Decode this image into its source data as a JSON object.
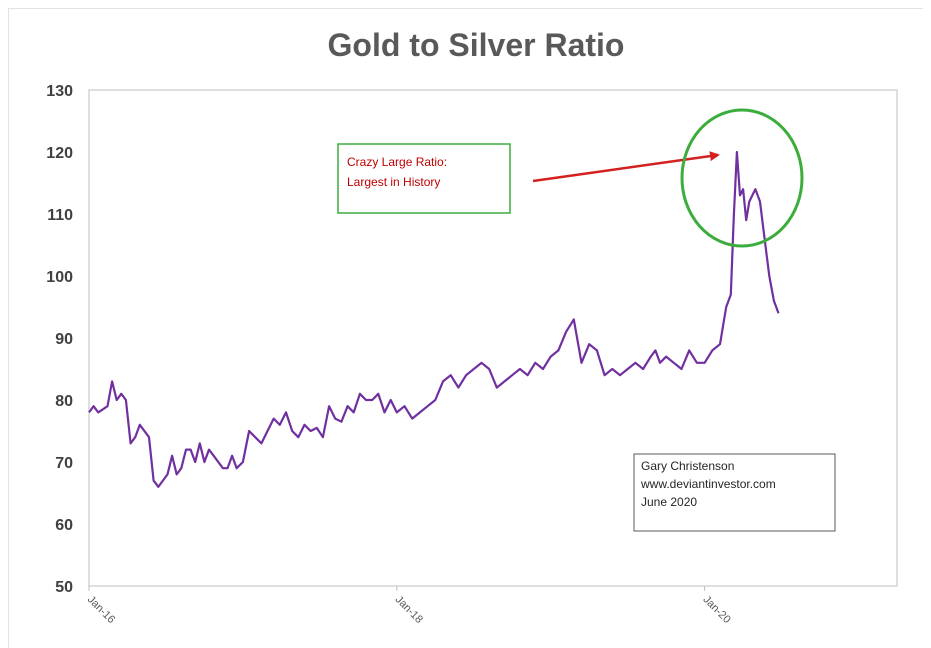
{
  "chart_data": {
    "type": "line",
    "title": "Gold to Silver Ratio",
    "xlabel": "",
    "ylabel": "",
    "ylim": [
      50,
      130
    ],
    "y_ticks": [
      50,
      60,
      70,
      80,
      90,
      100,
      110,
      120,
      130
    ],
    "x_tick_labels": [
      "Jan-16",
      "Jan-18",
      "Jan-20"
    ],
    "x_tick_years": [
      2016,
      2018,
      2020
    ],
    "xlim": [
      2016,
      2021.25
    ],
    "grid": false,
    "legend": "none",
    "series": [
      {
        "color": "#7030a0",
        "x": [
          2016.0,
          2016.03,
          2016.06,
          2016.09,
          2016.12,
          2016.15,
          2016.18,
          2016.21,
          2016.24,
          2016.27,
          2016.3,
          2016.33,
          2016.36,
          2016.39,
          2016.42,
          2016.45,
          2016.48,
          2016.51,
          2016.54,
          2016.57,
          2016.6,
          2016.63,
          2016.66,
          2016.69,
          2016.72,
          2016.75,
          2016.78,
          2016.81,
          2016.84,
          2016.87,
          2016.9,
          2016.93,
          2016.96,
          2017.0,
          2017.04,
          2017.08,
          2017.12,
          2017.16,
          2017.2,
          2017.24,
          2017.28,
          2017.32,
          2017.36,
          2017.4,
          2017.44,
          2017.48,
          2017.52,
          2017.56,
          2017.6,
          2017.64,
          2017.68,
          2017.72,
          2017.76,
          2017.8,
          2017.84,
          2017.88,
          2017.92,
          2017.96,
          2018.0,
          2018.05,
          2018.1,
          2018.15,
          2018.2,
          2018.25,
          2018.3,
          2018.35,
          2018.4,
          2018.45,
          2018.5,
          2018.55,
          2018.6,
          2018.65,
          2018.7,
          2018.75,
          2018.8,
          2018.85,
          2018.9,
          2018.95,
          2019.0,
          2019.05,
          2019.1,
          2019.15,
          2019.2,
          2019.25,
          2019.3,
          2019.35,
          2019.4,
          2019.45,
          2019.5,
          2019.55,
          2019.6,
          2019.65,
          2019.68,
          2019.71,
          2019.75,
          2019.8,
          2019.85,
          2019.9,
          2019.95,
          2020.0,
          2020.05,
          2020.1,
          2020.14,
          2020.17,
          2020.19,
          2020.21,
          2020.23,
          2020.25,
          2020.27,
          2020.29,
          2020.31,
          2020.33,
          2020.36,
          2020.39,
          2020.42,
          2020.45,
          2020.48
        ],
        "values": [
          78,
          79,
          78,
          78.5,
          79,
          83,
          80,
          81,
          80,
          73,
          74,
          76,
          75,
          74,
          67,
          66,
          67,
          68,
          71,
          68,
          69,
          72,
          72,
          70,
          73,
          70,
          72,
          71,
          70,
          69,
          69,
          71,
          69,
          70,
          75,
          74,
          73,
          75,
          77,
          76,
          78,
          75,
          74,
          76,
          75,
          75.5,
          74,
          79,
          77,
          76.5,
          79,
          78,
          81,
          80,
          80,
          81,
          78,
          80,
          78,
          79,
          77,
          78,
          79,
          80,
          83,
          84,
          82,
          84,
          85,
          86,
          85,
          82,
          83,
          84,
          85,
          84,
          86,
          85,
          87,
          88,
          91,
          93,
          86,
          89,
          88,
          84,
          85,
          84,
          85,
          86,
          85,
          87,
          88,
          86,
          87,
          86,
          85,
          88,
          86,
          86,
          88,
          89,
          95,
          97,
          110,
          120,
          113,
          114,
          109,
          112,
          113,
          114,
          112,
          106,
          100,
          96,
          94
        ]
      }
    ],
    "annotations": {
      "callout_text": [
        "Crazy Large Ratio:",
        "Largest in History"
      ],
      "credit_text": [
        "Gary Christenson",
        "www.deviantinvestor.com",
        "June 2020"
      ],
      "callout_color": "#c00000",
      "arrow_color": "#d42020",
      "circle_color": "#3cad3c",
      "box_border_color": "#3cad3c"
    }
  }
}
